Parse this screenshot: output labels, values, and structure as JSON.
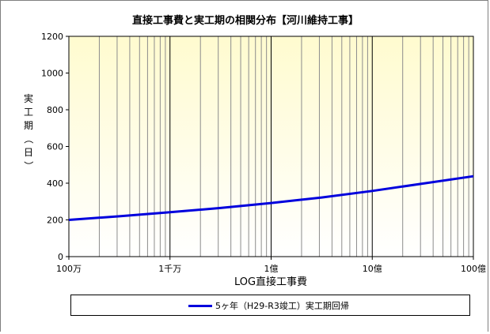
{
  "chart_data": {
    "type": "line",
    "title": "直接工事費と実工期の相関分布【河川維持工事】",
    "xlabel": "LOG直接工事費",
    "ylabel": "実工期（日）",
    "x_scale": "log",
    "xlim": [
      1000000,
      10000000000
    ],
    "ylim": [
      0,
      1200
    ],
    "x_tick_labels": [
      "100万",
      "1千万",
      "1億",
      "10億",
      "100億"
    ],
    "y_ticks": [
      0,
      200,
      400,
      600,
      800,
      1000,
      1200
    ],
    "grid": "vertical",
    "legend_position": "bottom",
    "series": [
      {
        "name": "5ヶ年（H29-R3竣工）実工期回帰",
        "color": "#0000dd",
        "x": [
          1000000,
          3162278,
          10000000,
          31622777,
          100000000,
          316227766,
          1000000000,
          3162277660,
          10000000000
        ],
        "y": [
          200,
          220,
          242,
          265,
          292,
          322,
          358,
          398,
          438
        ]
      }
    ],
    "plot_background": [
      "#fffbcf",
      "#ffffff"
    ]
  }
}
